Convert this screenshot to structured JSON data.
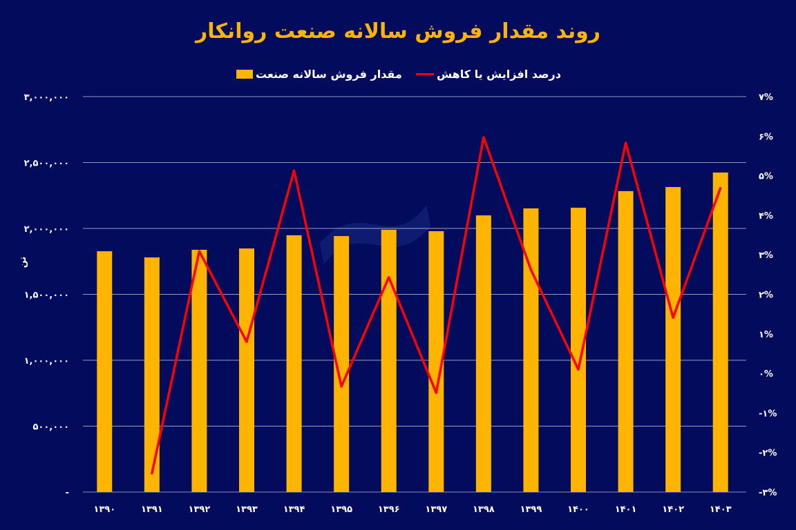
{
  "chart_data": {
    "type": "bar+line",
    "title": "روند مقدار فروش سالانه صنعت روانکار",
    "ylabel": "تن",
    "categories": [
      "۱۳۹۰",
      "۱۳۹۱",
      "۱۳۹۲",
      "۱۳۹۳",
      "۱۳۹۴",
      "۱۳۹۵",
      "۱۳۹۶",
      "۱۳۹۷",
      "۱۳۹۸",
      "۱۳۹۹",
      "۱۴۰۰",
      "۱۴۰۱",
      "۱۴۰۲",
      "۱۴۰۳"
    ],
    "series": [
      {
        "name": "مقدار فروش سالانه صنعت",
        "type": "bar",
        "axis": "left",
        "color": "#ffb400",
        "values": [
          1827000,
          1780000,
          1838000,
          1848000,
          1948000,
          1942000,
          1990000,
          1979000,
          2099000,
          2152000,
          2157000,
          2283000,
          2314000,
          2424000
        ]
      },
      {
        "name": "درصد افزایش یا کاهش",
        "type": "line",
        "axis": "right",
        "color": "#ff0000",
        "values": [
          null,
          -2.53,
          3.09,
          0.8,
          5.13,
          -0.33,
          2.43,
          -0.49,
          5.97,
          2.62,
          0.1,
          5.83,
          1.41,
          4.69
        ]
      }
    ],
    "left_axis": {
      "ylim": [
        0,
        3000000
      ],
      "ticks": [
        0,
        500000,
        1000000,
        1500000,
        2000000,
        2500000,
        3000000
      ],
      "tick_labels": [
        "-",
        "۵۰۰,۰۰۰",
        "۱,۰۰۰,۰۰۰",
        "۱,۵۰۰,۰۰۰",
        "۲,۰۰۰,۰۰۰",
        "۲,۵۰۰,۰۰۰",
        "۳,۰۰۰,۰۰۰"
      ]
    },
    "right_axis": {
      "ylim": [
        -3,
        7
      ],
      "ticks": [
        -3,
        -2,
        -1,
        0,
        1,
        2,
        3,
        4,
        5,
        6,
        7
      ],
      "tick_labels": [
        "-۳%",
        "-۲%",
        "-۱%",
        "۰%",
        "۱%",
        "۲%",
        "۳%",
        "۴%",
        "۵%",
        "۶%",
        "۷%"
      ]
    },
    "grid": true,
    "legend": "top-center"
  }
}
